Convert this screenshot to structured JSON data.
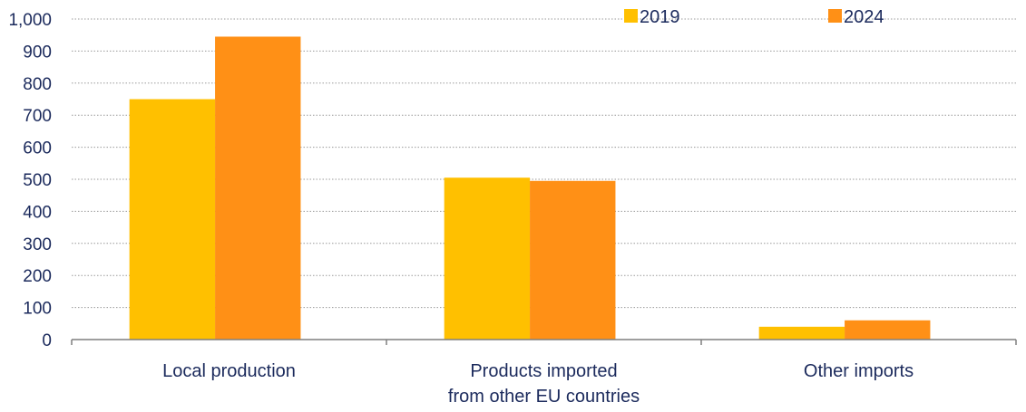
{
  "chart_data": {
    "type": "bar",
    "title": "",
    "xlabel": "",
    "ylabel": "",
    "categories": [
      [
        "Local production"
      ],
      [
        "Products imported",
        "from other EU countries"
      ],
      [
        "Other imports"
      ]
    ],
    "series": [
      {
        "name": "2019",
        "values": [
          750,
          505,
          40
        ],
        "color": "#ffc000"
      },
      {
        "name": "2024",
        "values": [
          945,
          495,
          60
        ],
        "color": "#ff9016"
      }
    ],
    "ylim": [
      0,
      1000
    ],
    "yticks": [
      "0",
      "100",
      "200",
      "300",
      "400",
      "500",
      "600",
      "700",
      "800",
      "900",
      "1,000"
    ],
    "grid": "horizontal-dotted",
    "legend_position": "top-right",
    "colors": {
      "text": "#1b2a5c",
      "grid": "#9a9a9a",
      "axis": "#7f7f7f"
    }
  }
}
